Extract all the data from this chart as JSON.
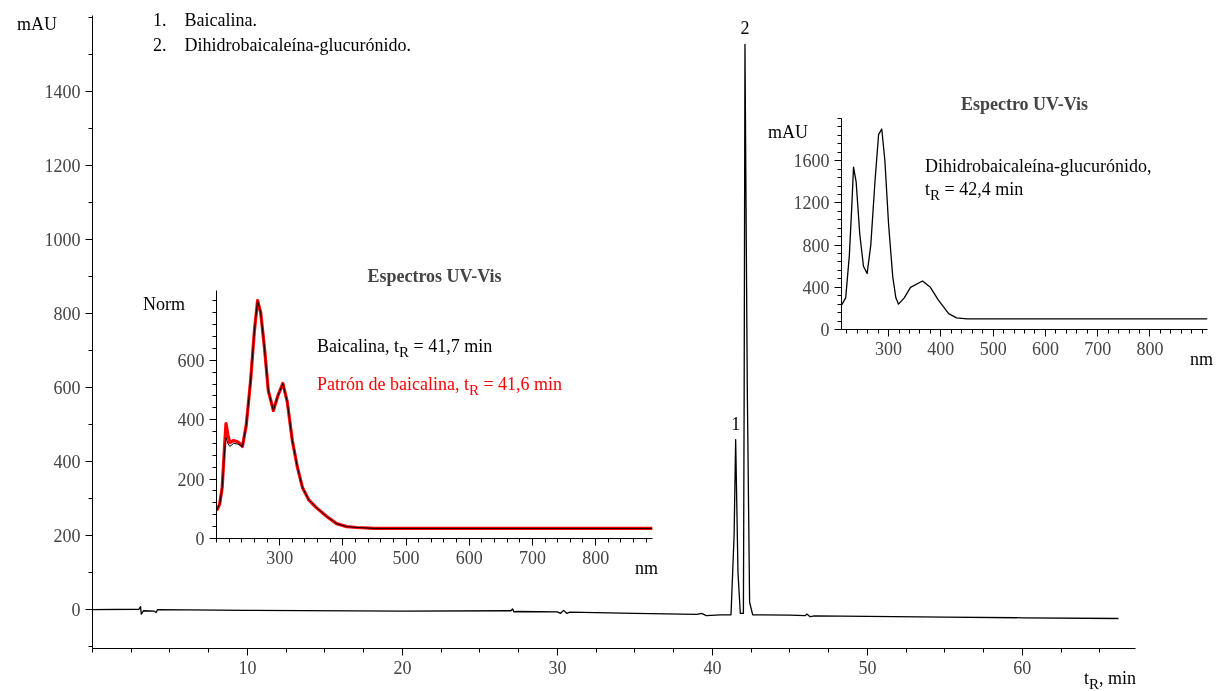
{
  "chart_data": [
    {
      "type": "line",
      "xlabel": "t$_{R}$, min",
      "ylabel": "mAU",
      "xlim": [
        0,
        67.3
      ],
      "xticks": [
        10,
        20,
        30,
        40,
        50,
        60
      ],
      "ylim": [
        -105,
        1605
      ],
      "yticks": [
        0,
        200,
        400,
        600,
        800,
        1000,
        1200,
        1400
      ],
      "grid": false,
      "annotations": [
        "1.    Baicalina.",
        "2.    Dihidrobaicaleína-glucurónido.",
        {
          "text": "1",
          "x": 41.5,
          "y": 459
        },
        {
          "text": "2",
          "x": 42.1,
          "y": 1527
        }
      ],
      "series": [
        {
          "color": "#000000",
          "x": [
            0,
            3.0,
            3.1,
            3.15,
            3.3,
            4.0,
            4.1,
            4.2,
            10,
            20,
            27,
            27.1,
            27.2,
            27.4,
            30,
            30.2,
            30.4,
            30.6,
            30.8,
            35,
            39,
            39.3,
            39.6,
            40.5,
            41.2,
            41.4,
            41.5,
            41.65,
            41.8,
            42.0,
            42.05,
            42.1,
            42.25,
            42.4,
            42.6,
            43,
            45,
            46,
            46.1,
            46.3,
            46.6,
            50,
            55,
            60,
            66.2
          ],
          "values": [
            0,
            1,
            8,
            -12,
            -3,
            -4,
            -8,
            0,
            -2,
            -4,
            -3,
            2,
            -6,
            -5,
            -6,
            -10,
            -2,
            -10,
            -7,
            -10,
            -13,
            -10,
            -16,
            -14,
            -14,
            200,
            459,
            100,
            -10,
            -10,
            600,
            1527,
            600,
            20,
            -14,
            -14,
            -15,
            -16,
            -12,
            -19,
            -17,
            -18,
            -20,
            -22,
            -24
          ]
        }
      ]
    },
    {
      "type": "line",
      "title": "Espectros UV-Vis",
      "xlabel": "nm",
      "ylabel": "Norm",
      "xlim": [
        200,
        890
      ],
      "xticks": [
        300,
        400,
        500,
        600,
        700,
        800
      ],
      "ylim": [
        0,
        835
      ],
      "yticks": [
        0,
        200,
        400,
        600
      ],
      "grid": false,
      "series": [
        {
          "name": "Baicalina, t$_{R}$ = 41,7 min",
          "color": "#000000",
          "x": [
            200,
            205,
            209,
            213,
            215,
            218,
            221,
            227,
            234,
            241,
            247,
            254,
            260,
            265,
            270,
            276,
            282,
            290,
            297,
            305,
            312,
            320,
            328,
            336,
            346,
            358,
            374,
            390,
            406,
            422,
            450,
            890
          ],
          "values": [
            94,
            115,
            172,
            300,
            340,
            320,
            310,
            320,
            318,
            310,
            380,
            532,
            700,
            801,
            760,
            640,
            498,
            431,
            480,
            522,
            460,
            330,
            240,
            172,
            130,
            104,
            75,
            50,
            40,
            37,
            34,
            34
          ]
        },
        {
          "name": "Patrón de baicalina, t$_{R}$ = 41,6 min",
          "color": "#ff0000",
          "x": [
            200,
            205,
            209,
            213,
            215,
            218,
            221,
            227,
            234,
            241,
            247,
            254,
            260,
            265,
            270,
            276,
            282,
            290,
            297,
            305,
            312,
            320,
            328,
            336,
            346,
            358,
            374,
            390,
            406,
            422,
            450,
            890
          ],
          "values": [
            94,
            115,
            172,
            320,
            387,
            350,
            323,
            330,
            325,
            310,
            380,
            532,
            700,
            801,
            760,
            640,
            498,
            431,
            480,
            522,
            460,
            330,
            240,
            172,
            130,
            104,
            75,
            50,
            40,
            37,
            34,
            34
          ]
        }
      ]
    },
    {
      "type": "line",
      "title": "Espectro UV-Vis",
      "xlabel": "nm",
      "ylabel": "mAU",
      "xlim": [
        210,
        910
      ],
      "xticks": [
        300,
        400,
        500,
        600,
        700,
        800
      ],
      "ylim": [
        0,
        2000
      ],
      "yticks": [
        0,
        400,
        800,
        1200,
        1600
      ],
      "grid": false,
      "series": [
        {
          "name": "Dihidrobaicaleína-glucurónido,\nt$_{R}$ = 42,4 min",
          "color": "#000000",
          "x": [
            210,
            218,
            225,
            230,
            233,
            238,
            245,
            252,
            259,
            266,
            274,
            281,
            287,
            293,
            300,
            308,
            314,
            319,
            330,
            342,
            365,
            380,
            395,
            415,
            430,
            450,
            910
          ],
          "values": [
            230,
            300,
            700,
            1200,
            1540,
            1400,
            900,
            600,
            530,
            800,
            1400,
            1850,
            1900,
            1600,
            1000,
            500,
            300,
            240,
            300,
            400,
            460,
            400,
            280,
            150,
            110,
            100,
            100
          ]
        }
      ]
    }
  ]
}
